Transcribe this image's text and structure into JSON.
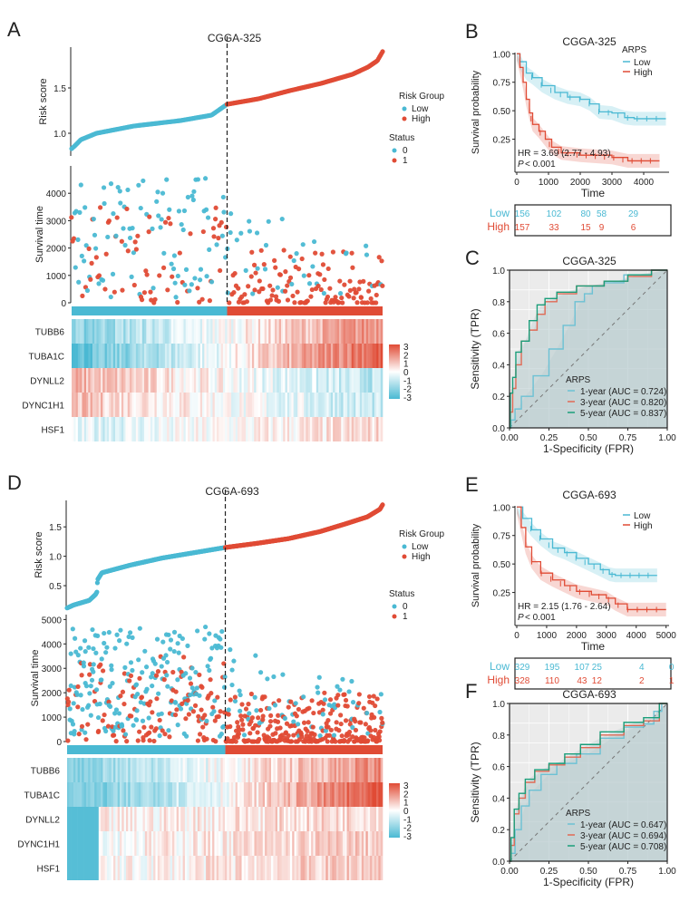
{
  "colors": {
    "low": "#4ab9d3",
    "high": "#e04b35",
    "roc_1yr": "#6cc1d4",
    "roc_3yr": "#e06a55",
    "roc_5yr": "#1a9e7a",
    "diag": "#777777",
    "heat_neg": "#4ab9d3",
    "heat_mid": "#ffffff",
    "heat_pos": "#e04b35"
  },
  "chart_data": [
    {
      "id": "A",
      "type": "scatter",
      "panel_label": "A",
      "title": "CGGA-325",
      "subplots": {
        "risk_score": {
          "ylabel": "Risk score",
          "yticks": [
            1.0,
            1.5
          ],
          "ytick_labels": [
            "1.0",
            "1.5"
          ],
          "ylim": [
            0.75,
            1.95
          ],
          "n_low": 156,
          "n_high": 157,
          "cutoff": 1.32,
          "curve_low": [
            [
              0,
              0.83
            ],
            [
              0.01,
              0.86
            ],
            [
              0.03,
              0.93
            ],
            [
              0.08,
              1.0
            ],
            [
              0.2,
              1.08
            ],
            [
              0.35,
              1.14
            ],
            [
              0.45,
              1.2
            ],
            [
              0.5,
              1.32
            ]
          ],
          "curve_high": [
            [
              0.5,
              1.32
            ],
            [
              0.6,
              1.38
            ],
            [
              0.7,
              1.47
            ],
            [
              0.8,
              1.55
            ],
            [
              0.9,
              1.65
            ],
            [
              0.95,
              1.73
            ],
            [
              0.98,
              1.8
            ],
            [
              1.0,
              1.92
            ]
          ]
        },
        "survival_time": {
          "ylabel": "Survival time",
          "yticks": [
            0,
            1000,
            2000,
            3000,
            4000
          ],
          "ytick_labels": [
            "0",
            "1000",
            "2000",
            "3000",
            "4000"
          ],
          "ylim": [
            0,
            5000
          ]
        },
        "heatmap": {
          "genes": [
            "TUBB6",
            "TUBA1C",
            "DYNLL2",
            "DYNC1H1",
            "HSF1"
          ],
          "trend": [
            1,
            1.4,
            -0.6,
            -0.5,
            0.3
          ],
          "colorbar_ticks": [
            "3",
            "2",
            "1",
            "0",
            "-1",
            "-2",
            "-3"
          ]
        }
      },
      "legend_group": {
        "title": "Risk Group",
        "items": [
          "Low",
          "High"
        ]
      },
      "legend_status": {
        "title": "Status",
        "items": [
          "0",
          "1"
        ]
      }
    },
    {
      "id": "B",
      "type": "line",
      "panel_label": "B",
      "title": "CGGA-325",
      "xlabel": "Time",
      "ylabel": "Survival probability",
      "xlim": [
        0,
        4800
      ],
      "ylim": [
        0,
        1.0
      ],
      "xticks": [
        0,
        1000,
        2000,
        3000,
        4000
      ],
      "xtick_labels": [
        "0",
        "1000",
        "2000",
        "3000",
        "4000"
      ],
      "yticks": [
        0.25,
        0.5,
        0.75,
        1.0
      ],
      "ytick_labels": [
        "0.25",
        "0.50",
        "0.75",
        "1.00"
      ],
      "legend": {
        "title": "ARPS",
        "items": [
          "Low",
          "High"
        ]
      },
      "annotation_hr": "HR = 3.69 (2.77 -  4.93)",
      "annotation_p_italic": "P",
      "annotation_p_rest": " < 0.001",
      "series": [
        {
          "name": "Low",
          "x": [
            0,
            100,
            300,
            500,
            800,
            1200,
            1600,
            2000,
            2300,
            2600,
            3000,
            3400,
            3700,
            4700
          ],
          "y": [
            1.0,
            0.93,
            0.83,
            0.79,
            0.72,
            0.66,
            0.62,
            0.6,
            0.56,
            0.49,
            0.48,
            0.44,
            0.43,
            0.43
          ]
        },
        {
          "name": "High",
          "x": [
            0,
            100,
            200,
            300,
            400,
            500,
            700,
            900,
            1100,
            1400,
            2000,
            3000,
            3500,
            4500
          ],
          "y": [
            1.0,
            0.88,
            0.75,
            0.6,
            0.48,
            0.38,
            0.32,
            0.25,
            0.18,
            0.13,
            0.11,
            0.09,
            0.06,
            0.06
          ]
        }
      ],
      "risk_table": {
        "rows": [
          "Low",
          "High"
        ],
        "times": [
          0,
          1000,
          2000,
          2500,
          3500
        ],
        "values": [
          [
            "156",
            "102",
            "80",
            "58",
            "29"
          ],
          [
            "157",
            "33",
            "15",
            "9",
            "6"
          ]
        ]
      }
    },
    {
      "id": "C",
      "type": "line",
      "panel_label": "C",
      "title": "CGGA-325",
      "xlabel": "1-Specificity (FPR)",
      "ylabel": "Sensitivity (TPR)",
      "xlim": [
        0,
        1
      ],
      "ylim": [
        0,
        1
      ],
      "xticks": [
        0,
        0.25,
        0.5,
        0.75,
        1.0
      ],
      "xtick_labels": [
        "0.00",
        "0.25",
        "0.50",
        "0.75",
        "1.00"
      ],
      "yticks": [
        0,
        0.2,
        0.4,
        0.6,
        0.8,
        1.0
      ],
      "ytick_labels": [
        "0.0",
        "0.2",
        "0.4",
        "0.6",
        "0.8",
        "1.0"
      ],
      "legend_title": "ARPS",
      "series": [
        {
          "name": "1-year (AUC = 0.724)",
          "key": "roc_1yr",
          "x": [
            0,
            0.02,
            0.05,
            0.1,
            0.2,
            0.3,
            0.38,
            0.45,
            0.5,
            0.55,
            0.65,
            0.8,
            1.0
          ],
          "y": [
            0,
            0.05,
            0.12,
            0.2,
            0.33,
            0.5,
            0.65,
            0.8,
            0.85,
            0.9,
            0.92,
            0.97,
            1.0
          ]
        },
        {
          "name": "3-year (AUC = 0.820)",
          "key": "roc_3yr",
          "x": [
            0,
            0.01,
            0.03,
            0.05,
            0.1,
            0.15,
            0.2,
            0.25,
            0.35,
            0.5,
            0.7,
            0.8,
            1.0
          ],
          "y": [
            0,
            0.1,
            0.25,
            0.4,
            0.55,
            0.62,
            0.72,
            0.8,
            0.85,
            0.9,
            0.93,
            0.96,
            1.0
          ]
        },
        {
          "name": "5-year (AUC = 0.837)",
          "key": "roc_5yr",
          "x": [
            0,
            0.01,
            0.03,
            0.05,
            0.1,
            0.15,
            0.2,
            0.25,
            0.35,
            0.5,
            0.7,
            0.8,
            1.0
          ],
          "y": [
            0,
            0.22,
            0.32,
            0.48,
            0.55,
            0.68,
            0.78,
            0.82,
            0.86,
            0.9,
            0.93,
            0.97,
            1.0
          ]
        }
      ]
    },
    {
      "id": "D",
      "type": "scatter",
      "panel_label": "D",
      "title": "CGGA-693",
      "subplots": {
        "risk_score": {
          "ylabel": "Risk score",
          "yticks": [
            0.5,
            1.0,
            1.5
          ],
          "ytick_labels": [
            "0.5",
            "1.0",
            "1.5"
          ],
          "ylim": [
            0.1,
            1.95
          ],
          "n_low": 329,
          "n_high": 328,
          "cutoff": 1.15,
          "curve_low": [
            [
              0,
              0.12
            ],
            [
              0.02,
              0.17
            ],
            [
              0.07,
              0.25
            ],
            [
              0.09,
              0.35
            ],
            [
              0.095,
              0.4
            ],
            [
              0.096,
              0.6
            ],
            [
              0.11,
              0.72
            ],
            [
              0.2,
              0.85
            ],
            [
              0.3,
              0.97
            ],
            [
              0.4,
              1.06
            ],
            [
              0.5,
              1.15
            ]
          ],
          "curve_high": [
            [
              0.5,
              1.15
            ],
            [
              0.6,
              1.22
            ],
            [
              0.7,
              1.3
            ],
            [
              0.8,
              1.42
            ],
            [
              0.88,
              1.55
            ],
            [
              0.95,
              1.67
            ],
            [
              0.99,
              1.8
            ],
            [
              1.0,
              1.89
            ]
          ]
        },
        "survival_time": {
          "ylabel": "Survival time",
          "yticks": [
            0,
            1000,
            2000,
            3000,
            4000,
            5000
          ],
          "ytick_labels": [
            "0",
            "1000",
            "2000",
            "3000",
            "4000",
            "5000"
          ],
          "ylim": [
            0,
            5200
          ]
        },
        "heatmap": {
          "genes": [
            "TUBB6",
            "TUBA1C",
            "DYNLL2",
            "DYNC1H1",
            "HSF1"
          ],
          "trend": [
            1,
            1.4,
            0.2,
            0.25,
            0.3
          ],
          "low_block_fraction": 0.1,
          "colorbar_ticks": [
            "3",
            "2",
            "1",
            "0",
            "-1",
            "-2",
            "-3"
          ]
        }
      },
      "legend_group": {
        "title": "Risk Group",
        "items": [
          "Low",
          "High"
        ]
      },
      "legend_status": {
        "title": "Status",
        "items": [
          "0",
          "1"
        ]
      }
    },
    {
      "id": "E",
      "type": "line",
      "panel_label": "E",
      "title": "CGGA-693",
      "xlabel": "Time",
      "ylabel": "Survival probability",
      "xlim": [
        0,
        5100
      ],
      "ylim": [
        0,
        1.0
      ],
      "xticks": [
        0,
        1000,
        2000,
        3000,
        4000,
        5000
      ],
      "xtick_labels": [
        "0",
        "1000",
        "2000",
        "3000",
        "4000",
        "5000"
      ],
      "yticks": [
        0.25,
        0.5,
        0.75,
        1.0
      ],
      "ytick_labels": [
        "0.25",
        "0.50",
        "0.75",
        "1.00"
      ],
      "legend": {
        "title": "",
        "items": [
          "Low",
          "High"
        ]
      },
      "annotation_hr": "HR = 2.15 (1.76 -  2.64)",
      "annotation_p_italic": "P",
      "annotation_p_rest": " < 0.001",
      "series": [
        {
          "name": "Low",
          "x": [
            0,
            200,
            500,
            800,
            1200,
            1600,
            2000,
            2400,
            2800,
            3100,
            3300,
            4700
          ],
          "y": [
            1.0,
            0.9,
            0.8,
            0.72,
            0.64,
            0.6,
            0.55,
            0.5,
            0.45,
            0.41,
            0.4,
            0.4
          ]
        },
        {
          "name": "High",
          "x": [
            0,
            150,
            300,
            500,
            800,
            1200,
            1600,
            2000,
            2500,
            3000,
            3300,
            3700,
            5000
          ],
          "y": [
            1.0,
            0.82,
            0.65,
            0.52,
            0.42,
            0.36,
            0.31,
            0.26,
            0.23,
            0.2,
            0.15,
            0.1,
            0.1
          ]
        }
      ],
      "risk_table": {
        "rows": [
          "Low",
          "High"
        ],
        "times": [
          0,
          1000,
          2000,
          2500,
          4000,
          5000
        ],
        "values": [
          [
            "329",
            "195",
            "107",
            "25",
            "4",
            "0"
          ],
          [
            "328",
            "110",
            "43",
            "12",
            "2",
            "1"
          ]
        ]
      }
    },
    {
      "id": "F",
      "type": "line",
      "panel_label": "F",
      "title": "CGGA-693",
      "xlabel": "1-Specificity (FPR)",
      "ylabel": "Sensitivity (TPR)",
      "xlim": [
        0,
        1
      ],
      "ylim": [
        0,
        1
      ],
      "xticks": [
        0,
        0.25,
        0.5,
        0.75,
        1.0
      ],
      "xtick_labels": [
        "0.00",
        "0.25",
        "0.50",
        "0.75",
        "1.00"
      ],
      "yticks": [
        0,
        0.2,
        0.4,
        0.6,
        0.8,
        1.0
      ],
      "ytick_labels": [
        "0.0",
        "0.2",
        "0.4",
        "0.6",
        "0.8",
        "1.0"
      ],
      "legend_title": "ARPS",
      "series": [
        {
          "name": "1-year (AUC = 0.647)",
          "key": "roc_1yr",
          "x": [
            0,
            0.02,
            0.05,
            0.1,
            0.15,
            0.25,
            0.35,
            0.5,
            0.65,
            0.8,
            0.9,
            0.93,
            1.0
          ],
          "y": [
            0,
            0.05,
            0.2,
            0.35,
            0.45,
            0.55,
            0.62,
            0.68,
            0.78,
            0.85,
            0.87,
            0.95,
            1.0
          ]
        },
        {
          "name": "3-year (AUC = 0.694)",
          "key": "roc_3yr",
          "x": [
            0,
            0.02,
            0.04,
            0.08,
            0.12,
            0.2,
            0.3,
            0.4,
            0.5,
            0.65,
            0.8,
            0.9,
            1.0
          ],
          "y": [
            0,
            0.1,
            0.3,
            0.4,
            0.5,
            0.57,
            0.61,
            0.66,
            0.72,
            0.8,
            0.86,
            0.89,
            1.0
          ]
        },
        {
          "name": "5-year (AUC = 0.708)",
          "key": "roc_5yr",
          "x": [
            0,
            0.02,
            0.04,
            0.08,
            0.12,
            0.2,
            0.3,
            0.4,
            0.5,
            0.65,
            0.8,
            0.9,
            1.0
          ],
          "y": [
            0,
            0.15,
            0.33,
            0.43,
            0.52,
            0.58,
            0.62,
            0.68,
            0.74,
            0.82,
            0.88,
            0.91,
            1.0
          ]
        }
      ]
    }
  ]
}
